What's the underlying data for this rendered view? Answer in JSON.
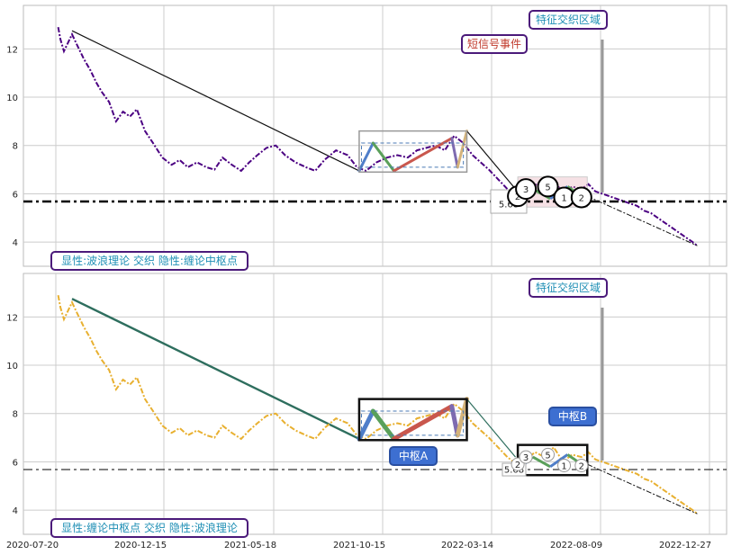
{
  "chart_data": [
    {
      "type": "line",
      "panel": "top",
      "ylim": [
        3,
        13.8
      ],
      "yticks": [
        "4",
        "6",
        "8",
        "10",
        "12"
      ],
      "grid": true,
      "hline": {
        "value": 5.68,
        "label": "5.68"
      },
      "series": [
        {
          "role": "price",
          "color": "#4b0082",
          "x": [
            0,
            2,
            5,
            9,
            12,
            16,
            22,
            28,
            33,
            38,
            44,
            50,
            56,
            62,
            68,
            75,
            82,
            90,
            98,
            105,
            112,
            120,
            128,
            135,
            142,
            150,
            158,
            165,
            172,
            180,
            188,
            196,
            205,
            214,
            222,
            230,
            240,
            250,
            258,
            266,
            275,
            284,
            293,
            302,
            310,
            318,
            326,
            334,
            342,
            350,
            358,
            365,
            372,
            380,
            388,
            396,
            404,
            412,
            420,
            428,
            436,
            444,
            452,
            458,
            464,
            470,
            476,
            482,
            488,
            494,
            500,
            506,
            512,
            518,
            524,
            530,
            536,
            542,
            548,
            552
          ],
          "y": [
            12.9,
            12.4,
            11.9,
            12.3,
            12.6,
            12.2,
            11.6,
            11.1,
            10.6,
            10.2,
            9.8,
            9.0,
            9.4,
            9.2,
            9.5,
            8.6,
            8.1,
            7.5,
            7.2,
            7.4,
            7.1,
            7.3,
            7.1,
            7.0,
            7.5,
            7.2,
            6.95,
            7.3,
            7.6,
            7.9,
            8.0,
            7.6,
            7.3,
            7.1,
            6.95,
            7.4,
            7.8,
            7.6,
            7.1,
            6.95,
            7.3,
            7.5,
            7.6,
            7.5,
            7.8,
            7.9,
            8.0,
            7.8,
            8.4,
            8.1,
            7.6,
            7.3,
            7.0,
            6.6,
            6.2,
            5.9,
            6.1,
            6.4,
            6.2,
            6.6,
            6.0,
            6.3,
            6.2,
            6.4,
            6.1,
            6.0,
            5.9,
            5.8,
            5.7,
            5.6,
            5.5,
            5.3,
            5.2,
            5.0,
            4.8,
            4.6,
            4.4,
            4.2,
            4.0,
            3.85
          ]
        }
      ],
      "annotations": [
        {
          "kind": "badge",
          "text": "短信号事件",
          "color": "#c0392b"
        },
        {
          "kind": "badge",
          "text": "特征交织区域",
          "color": "#1f8fb5"
        },
        {
          "kind": "badge",
          "text": "显性:波浪理论 交织 隐性:缠论中枢点",
          "color": "#1f8fb5"
        }
      ],
      "markers": [
        "2",
        "3",
        "5",
        "1",
        "2"
      ]
    },
    {
      "type": "line",
      "panel": "bottom",
      "ylim": [
        3,
        13.8
      ],
      "yticks": [
        "4",
        "6",
        "8",
        "10",
        "12"
      ],
      "xtick_labels": [
        "2020-07-20",
        "2020-12-15",
        "2021-05-18",
        "2021-10-15",
        "2022-03-14",
        "2022-08-09",
        "2022-12-27"
      ],
      "grid": true,
      "hline": {
        "value": 5.68,
        "label": "5.68"
      },
      "series": [
        {
          "role": "price",
          "color": "#e8b030"
        }
      ],
      "annotations": [
        {
          "kind": "badge",
          "text": "特征交织区域",
          "color": "#1f8fb5"
        },
        {
          "kind": "badge",
          "text": "中枢A",
          "color": "#ffffff"
        },
        {
          "kind": "badge",
          "text": "中枢B",
          "color": "#ffffff"
        },
        {
          "kind": "badge",
          "text": "显性:缠论中枢点 交织 隐性:波浪理论",
          "color": "#1f8fb5"
        }
      ],
      "markers": [
        "2",
        "3",
        "5",
        "1",
        "2"
      ]
    }
  ]
}
